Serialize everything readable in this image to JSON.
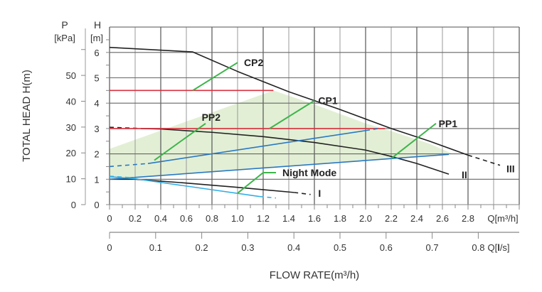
{
  "chart_data": {
    "type": "line",
    "title": "",
    "ylabel": "TOTAL HEAD H(m)",
    "xlabel": "FLOW RATE(m³/h)",
    "y_axis_H": {
      "title": "H",
      "unit": "[m]",
      "range": [
        0,
        7
      ],
      "ticks": [
        "0",
        "1",
        "2",
        "3",
        "4",
        "5",
        "6"
      ]
    },
    "y_axis_P": {
      "title": "P",
      "unit": "[kPa]",
      "range": [
        0,
        68.6
      ],
      "ticks": [
        "0",
        "10",
        "20",
        "30",
        "40",
        "50"
      ]
    },
    "x_axis_m3h": {
      "unit_label": "Q[m³/h]",
      "range": [
        0,
        3.2
      ],
      "ticks": [
        "0",
        "0.2",
        "0.4",
        "0.6",
        "0.8",
        "1.0",
        "1.2",
        "1.4",
        "1.6",
        "1.8",
        "2.0",
        "2.2",
        "2.4",
        "2.6",
        "2.8"
      ]
    },
    "x_axis_ls": {
      "unit_label_prefix": "Q[",
      "unit_label_bold": "l",
      "unit_label_suffix": "/s]",
      "ticks": [
        "0",
        "0.1",
        "0.2",
        "0.3",
        "0.4",
        "0.5",
        "0.6",
        "0.7",
        "0.8"
      ]
    },
    "grid": true,
    "shaded_region": {
      "name": "operating range",
      "color": "#e2efd5",
      "points": [
        [
          0,
          1.0
        ],
        [
          0,
          2.2
        ],
        [
          1.28,
          4.5
        ],
        [
          1.6,
          3.95
        ],
        [
          2.0,
          3.2
        ],
        [
          2.2,
          2.9
        ],
        [
          2.5,
          2.4
        ],
        [
          2.68,
          2.0
        ],
        [
          2.65,
          2.0
        ],
        [
          0,
          1.0
        ]
      ]
    },
    "series": [
      {
        "name": "III",
        "color": "#222222",
        "style": "solid",
        "points": [
          [
            0,
            6.2
          ],
          [
            0.65,
            6.02
          ],
          [
            1.0,
            5.25
          ],
          [
            1.4,
            4.45
          ],
          [
            1.8,
            3.75
          ],
          [
            2.2,
            3.0
          ],
          [
            2.5,
            2.5
          ],
          [
            2.8,
            1.95
          ]
        ]
      },
      {
        "name": "III-ext",
        "color": "#222222",
        "style": "dashed",
        "points": [
          [
            2.8,
            1.95
          ],
          [
            3.05,
            1.55
          ]
        ]
      },
      {
        "name": "II-ext",
        "color": "#222222",
        "style": "dashed",
        "points": [
          [
            0,
            3.05
          ],
          [
            0.25,
            3.0
          ]
        ]
      },
      {
        "name": "II",
        "color": "#222222",
        "style": "solid",
        "points": [
          [
            0.25,
            3.0
          ],
          [
            0.4,
            2.98
          ],
          [
            0.8,
            2.85
          ],
          [
            1.2,
            2.68
          ],
          [
            1.6,
            2.45
          ],
          [
            2.0,
            2.15
          ],
          [
            2.2,
            1.9
          ],
          [
            2.4,
            1.62
          ],
          [
            2.65,
            1.2
          ]
        ]
      },
      {
        "name": "I",
        "color": "#222222",
        "style": "solid",
        "points": [
          [
            0,
            1.0
          ],
          [
            0.2,
            1.0
          ],
          [
            0.6,
            0.85
          ],
          [
            1.0,
            0.68
          ],
          [
            1.44,
            0.48
          ]
        ]
      },
      {
        "name": "I-ext",
        "color": "#222222",
        "style": "dashed",
        "points": [
          [
            1.44,
            0.48
          ],
          [
            1.57,
            0.4
          ]
        ]
      },
      {
        "name": "CP2",
        "color": "#d9303f",
        "style": "solid",
        "points": [
          [
            0,
            4.5
          ],
          [
            1.28,
            4.5
          ]
        ]
      },
      {
        "name": "CP1",
        "color": "#d9303f",
        "style": "solid",
        "points": [
          [
            0,
            3.0
          ],
          [
            2.15,
            3.0
          ]
        ]
      },
      {
        "name": "PP2-ext",
        "color": "#2a78c2",
        "style": "dashed",
        "points": [
          [
            0,
            1.5
          ],
          [
            0.3,
            1.62
          ]
        ]
      },
      {
        "name": "PP2",
        "color": "#2a78c2",
        "style": "solid",
        "points": [
          [
            0.3,
            1.62
          ],
          [
            2.0,
            2.92
          ]
        ]
      },
      {
        "name": "PP2-ext2",
        "color": "#2a78c2",
        "style": "dashed",
        "points": [
          [
            2.0,
            2.92
          ],
          [
            2.1,
            3.0
          ]
        ]
      },
      {
        "name": "PP1",
        "color": "#2a78c2",
        "style": "solid",
        "points": [
          [
            0,
            1.0
          ],
          [
            2.65,
            1.98
          ]
        ]
      },
      {
        "name": "Night Mode",
        "color": "#33aee6",
        "style": "solid",
        "points": [
          [
            0,
            1.1
          ],
          [
            0.2,
            1.02
          ],
          [
            1.17,
            0.32
          ]
        ]
      },
      {
        "name": "Night Mode-ext",
        "color": "#33aee6",
        "style": "dashed",
        "points": [
          [
            1.17,
            0.32
          ],
          [
            1.3,
            0.26
          ]
        ]
      },
      {
        "name": "Night Mode-ext0",
        "color": "#33aee6",
        "style": "dashed",
        "points": [
          [
            0,
            1.12
          ],
          [
            0.2,
            1.05
          ]
        ]
      }
    ],
    "annotations": [
      {
        "text": "CP2",
        "anchor": [
          0.65,
          4.5
        ],
        "knee": [
          1.0,
          5.6
        ],
        "label_at": [
          1.05,
          5.6
        ]
      },
      {
        "text": "CP1",
        "anchor": [
          1.25,
          3.0
        ],
        "knee": [
          1.6,
          4.1
        ],
        "label_at": [
          1.63,
          4.1
        ]
      },
      {
        "text": "PP2",
        "anchor": [
          0.35,
          1.75
        ],
        "knee": [
          0.75,
          3.2
        ],
        "label_at": [
          0.72,
          3.45
        ]
      },
      {
        "text": "PP1",
        "anchor": [
          2.2,
          1.82
        ],
        "knee": [
          2.55,
          3.2
        ],
        "label_at": [
          2.57,
          3.2
        ]
      },
      {
        "text": "Night Mode",
        "anchor": [
          1.0,
          0.45
        ],
        "knee": [
          1.2,
          1.26
        ],
        "end": [
          1.3,
          1.26
        ],
        "label_at": [
          1.35,
          1.26
        ]
      },
      {
        "text": "III",
        "label_at": [
          3.1,
          1.42
        ]
      },
      {
        "text": "II",
        "label_at": [
          2.75,
          1.18
        ]
      },
      {
        "text": "I",
        "label_at": [
          1.63,
          0.45
        ]
      }
    ],
    "annotation_line_color": "#3cb54a"
  }
}
